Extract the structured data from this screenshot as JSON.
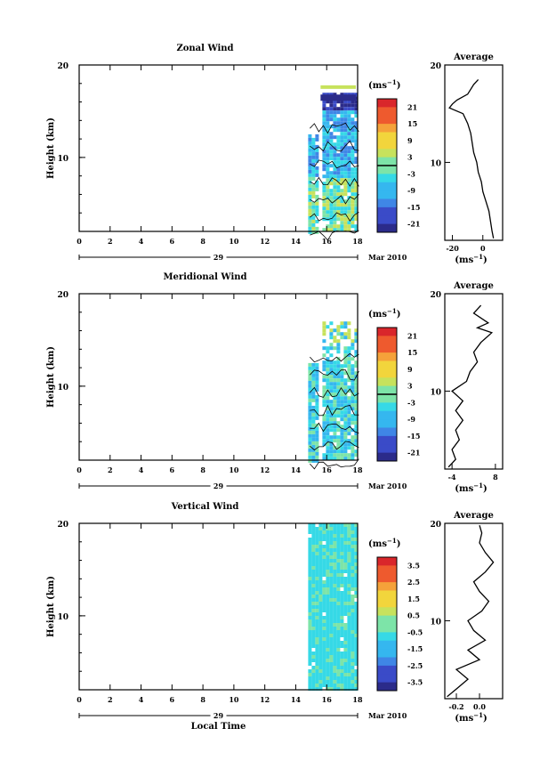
{
  "chart_data": [
    {
      "type": "heatmap",
      "title": "Zonal Wind",
      "ylabel": "Height (km)",
      "yticks": [
        "20",
        "10"
      ],
      "ylim": [
        2,
        20
      ],
      "xticks": [
        "0",
        "2",
        "4",
        "6",
        "8",
        "10",
        "12",
        "14",
        "16",
        "18"
      ],
      "xlim": [
        0,
        18
      ],
      "date_label": "29",
      "month_label": "Mar 2010",
      "colorbar": {
        "unit": "(ms",
        "unit_exp": "−1",
        "labels": [
          "21",
          "15",
          "9",
          "3",
          "-3",
          "-9",
          "-15",
          "-21"
        ],
        "range": [
          -24,
          24
        ]
      },
      "data_region": {
        "time_start": 14.8,
        "time_end": 18,
        "height_min": 2,
        "height_max": 17
      },
      "profile": {
        "title": "Average",
        "xlabel": "(ms",
        "xlabel_exp": "−1",
        "xticks": [
          "-20",
          "0"
        ],
        "xlim": [
          -25,
          13
        ],
        "ylim": [
          2,
          20
        ],
        "yticks": [
          "20",
          "10"
        ],
        "points": [
          [
            7,
            2.2
          ],
          [
            6,
            3
          ],
          [
            5,
            4
          ],
          [
            4,
            5
          ],
          [
            2,
            6
          ],
          [
            0,
            7
          ],
          [
            -1,
            8
          ],
          [
            -3,
            9
          ],
          [
            -4,
            10
          ],
          [
            -6,
            11
          ],
          [
            -7,
            12
          ],
          [
            -8,
            13
          ],
          [
            -10,
            14
          ],
          [
            -13,
            15
          ],
          [
            -22,
            15.6
          ],
          [
            -20,
            16
          ],
          [
            -17,
            16.4
          ],
          [
            -10,
            17
          ],
          [
            -6,
            18
          ],
          [
            -3,
            18.5
          ]
        ]
      }
    },
    {
      "type": "heatmap",
      "title": "Meridional Wind",
      "ylabel": "Height (km)",
      "yticks": [
        "20",
        "10"
      ],
      "ylim": [
        2,
        20
      ],
      "xticks": [
        "0",
        "2",
        "4",
        "6",
        "8",
        "10",
        "12",
        "14",
        "16",
        "18"
      ],
      "xlim": [
        0,
        18
      ],
      "date_label": "29",
      "month_label": "Mar 2010",
      "colorbar": {
        "unit": "(ms",
        "unit_exp": "−1",
        "labels": [
          "21",
          "15",
          "9",
          "3",
          "-3",
          "-9",
          "-15",
          "-21"
        ],
        "range": [
          -24,
          24
        ]
      },
      "data_region": {
        "time_start": 14.8,
        "time_end": 18,
        "height_min": 2,
        "height_max": 17
      },
      "profile": {
        "title": "Average",
        "xlabel": "(ms",
        "xlabel_exp": "−1",
        "xticks": [
          "-4",
          "8"
        ],
        "xlim": [
          -6,
          10
        ],
        "ylim": [
          2,
          20
        ],
        "yticks": [
          "20",
          "10"
        ],
        "points": [
          [
            -5,
            2.2
          ],
          [
            -3,
            3
          ],
          [
            -4,
            4
          ],
          [
            -2,
            5
          ],
          [
            -3,
            6
          ],
          [
            -1,
            7
          ],
          [
            -3,
            8
          ],
          [
            -1,
            9
          ],
          [
            -4,
            10
          ],
          [
            0,
            11
          ],
          [
            1,
            12
          ],
          [
            3,
            13
          ],
          [
            2,
            14
          ],
          [
            4,
            15
          ],
          [
            7,
            16
          ],
          [
            3,
            16.5
          ],
          [
            6,
            17
          ],
          [
            2,
            18
          ],
          [
            4,
            18.8
          ]
        ]
      }
    },
    {
      "type": "heatmap",
      "title": "Vertical Wind",
      "ylabel": "Height (km)",
      "yticks": [
        "20",
        "10"
      ],
      "ylim": [
        2,
        20
      ],
      "xticks": [
        "0",
        "2",
        "4",
        "6",
        "8",
        "10",
        "12",
        "14",
        "16",
        "18"
      ],
      "xlim": [
        0,
        18
      ],
      "date_label": "29",
      "month_label": "Mar 2010",
      "xlabel": "Local Time",
      "colorbar": {
        "unit": "(ms",
        "unit_exp": "−1",
        "labels": [
          "3.5",
          "2.5",
          "1.5",
          "0.5",
          "-0.5",
          "-1.5",
          "-2.5",
          "-3.5"
        ],
        "range": [
          -4,
          4
        ]
      },
      "data_region": {
        "time_start": 14.8,
        "time_end": 18,
        "height_min": 2,
        "height_max": 20
      },
      "profile": {
        "title": "Average",
        "xlabel": "(ms",
        "xlabel_exp": "−1",
        "xticks": [
          "-0.2",
          "0.0"
        ],
        "xlim": [
          -0.3,
          0.2
        ],
        "ylim": [
          2,
          20
        ],
        "yticks": [
          "20",
          "10"
        ],
        "points": [
          [
            -0.28,
            2.2
          ],
          [
            -0.2,
            3
          ],
          [
            -0.1,
            4
          ],
          [
            -0.2,
            5
          ],
          [
            0.0,
            6
          ],
          [
            -0.1,
            7
          ],
          [
            0.05,
            8
          ],
          [
            -0.05,
            9
          ],
          [
            -0.1,
            10
          ],
          [
            0.02,
            11
          ],
          [
            0.08,
            12
          ],
          [
            0.0,
            13
          ],
          [
            -0.05,
            14
          ],
          [
            0.05,
            15
          ],
          [
            0.12,
            16
          ],
          [
            0.05,
            17
          ],
          [
            0.0,
            18
          ],
          [
            0.02,
            19
          ],
          [
            0.0,
            19.8
          ]
        ]
      }
    }
  ]
}
